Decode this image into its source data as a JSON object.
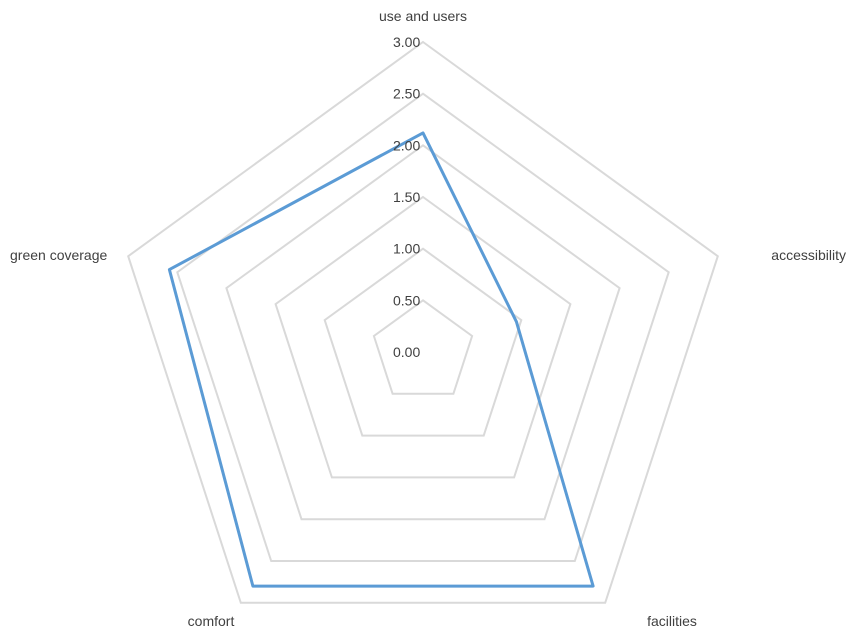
{
  "chart_data": {
    "type": "radar",
    "categories": [
      "use and users",
      "accessibility",
      "facilities",
      "comfort",
      "green coverage"
    ],
    "series": [
      {
        "values": [
          2.12,
          0.95,
          2.8,
          2.8,
          2.58
        ],
        "color": "#5b9bd5"
      }
    ],
    "rlim": [
      0,
      3
    ],
    "ticks": [
      "0.00",
      "0.50",
      "1.00",
      "1.50",
      "2.00",
      "2.50",
      "3.00"
    ],
    "grid": true,
    "colors": {
      "grid": "#d9d9d9",
      "text": "#404040"
    }
  }
}
